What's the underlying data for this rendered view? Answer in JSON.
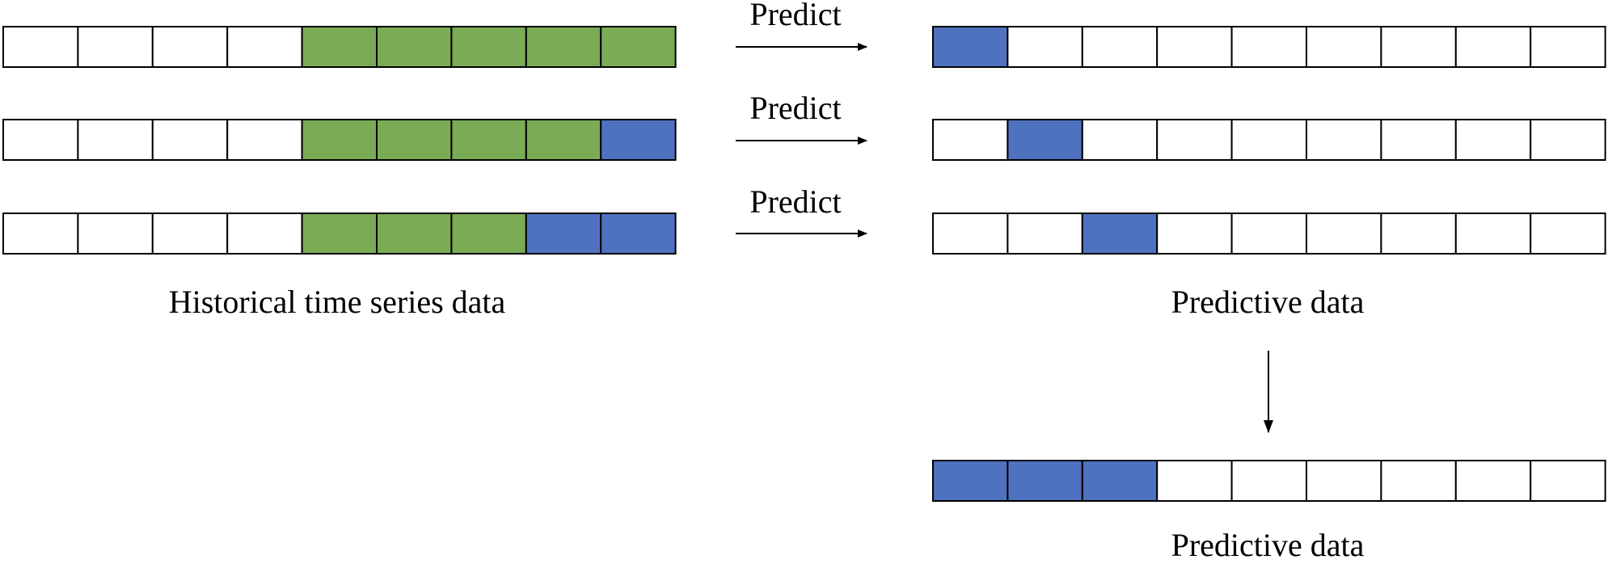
{
  "arrow_labels": [
    "Predict",
    "Predict",
    "Predict"
  ],
  "historical_label": "Historical time series data",
  "predictive_labels": [
    "Predictive data",
    "Predictive data"
  ]
}
